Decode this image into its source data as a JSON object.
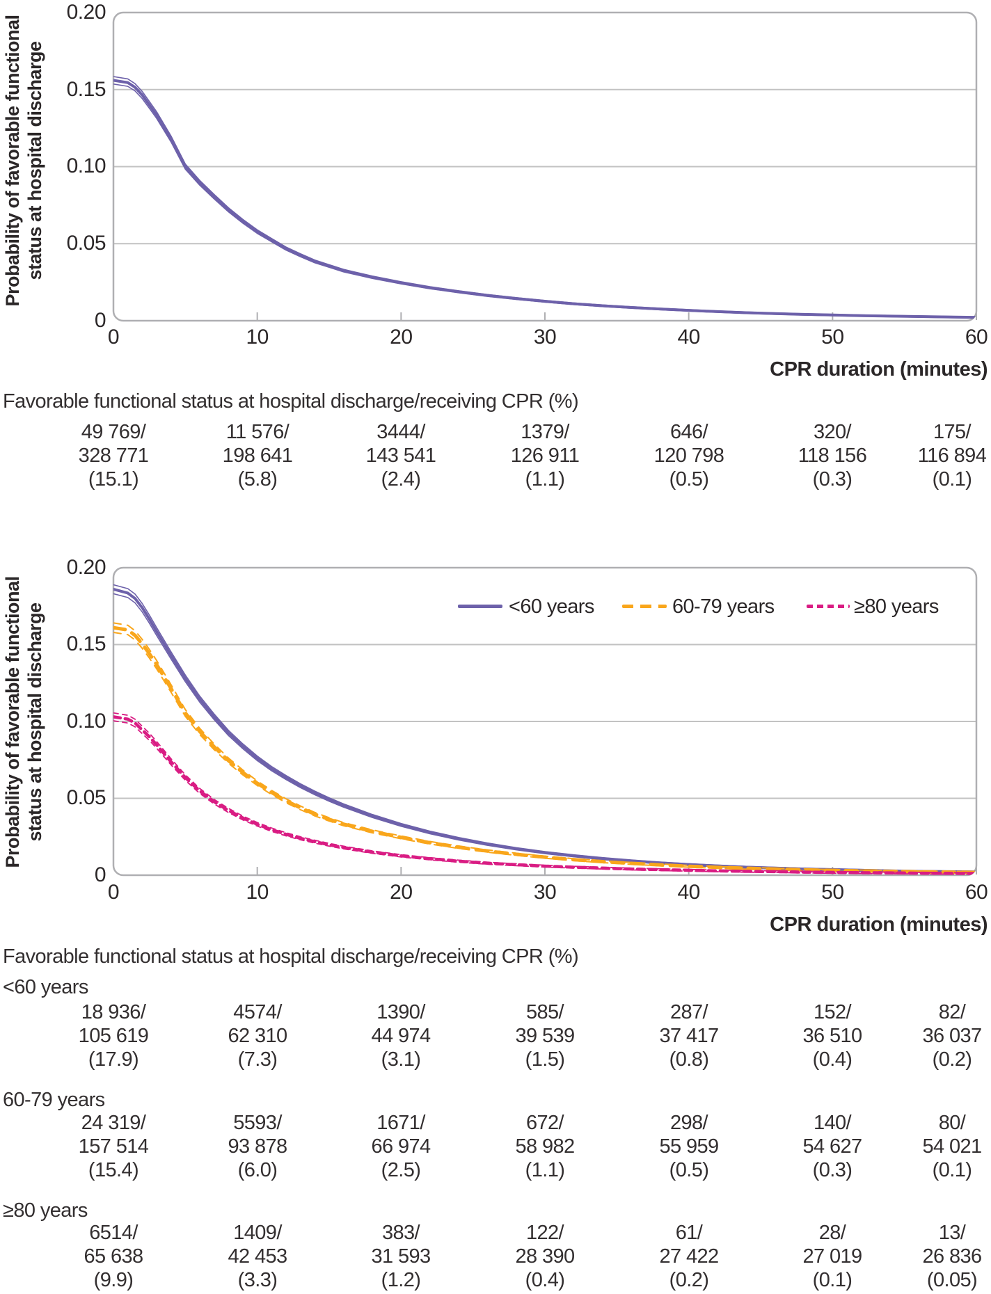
{
  "figure": {
    "background": "#ffffff",
    "text_color": "#332f30",
    "grid_color": "#c2c2c2",
    "border_color": "#afafb2",
    "accent_purple": "#6d61aa",
    "accent_orange": "#f9a61b",
    "accent_magenta": "#d91c83"
  },
  "chart_data": [
    {
      "type": "line",
      "panel": "top",
      "xlabel": "CPR duration (minutes)",
      "ylabel": [
        "Probability of favorable functional",
        "status at hospital discharge"
      ],
      "xlim": [
        0,
        60
      ],
      "ylim": [
        0,
        0.2
      ],
      "x_ticks": [
        "0",
        "10",
        "20",
        "30",
        "40",
        "50",
        "60"
      ],
      "y_ticks": [
        "0.20",
        "0.15",
        "0.10",
        "0.05",
        "0"
      ],
      "grid": true,
      "legend": null,
      "series": [
        {
          "color": "#6d61aa",
          "style": "solid",
          "ci_frac": 0.013,
          "ci_abs": 0.0004,
          "points": [
            [
              0,
              0.156
            ],
            [
              1,
              0.1545
            ],
            [
              1.5,
              0.1515
            ],
            [
              2,
              0.1465
            ],
            [
              2.5,
              0.14
            ],
            [
              3,
              0.1335
            ],
            [
              4,
              0.118
            ],
            [
              5,
              0.1
            ],
            [
              6,
              0.0895
            ],
            [
              7,
              0.0805
            ],
            [
              8,
              0.072
            ],
            [
              9,
              0.0645
            ],
            [
              10,
              0.0578
            ],
            [
              11,
              0.0523
            ],
            [
              12,
              0.0468
            ],
            [
              13,
              0.0425
            ],
            [
              14,
              0.0385
            ],
            [
              15,
              0.0355
            ],
            [
              16,
              0.0325
            ],
            [
              18,
              0.0282
            ],
            [
              20,
              0.0246
            ],
            [
              22,
              0.0214
            ],
            [
              24,
              0.0188
            ],
            [
              26,
              0.0164
            ],
            [
              28,
              0.0144
            ],
            [
              30,
              0.0126
            ],
            [
              32,
              0.011
            ],
            [
              34,
              0.0097
            ],
            [
              36,
              0.0086
            ],
            [
              38,
              0.0076
            ],
            [
              40,
              0.0067
            ],
            [
              42,
              0.0059
            ],
            [
              44,
              0.0052
            ],
            [
              46,
              0.0046
            ],
            [
              48,
              0.0041
            ],
            [
              50,
              0.0037
            ],
            [
              52,
              0.0033
            ],
            [
              54,
              0.003
            ],
            [
              56,
              0.0027
            ],
            [
              58,
              0.0024
            ],
            [
              60,
              0.0022
            ]
          ]
        }
      ],
      "footer_caption": "Favorable functional status at hospital discharge/receiving CPR (%)",
      "footer_columns": [
        [
          "49 769/",
          "328 771",
          "(15.1)"
        ],
        [
          "11 576/",
          "198 641",
          "(5.8)"
        ],
        [
          "3444/",
          "143 541",
          "(2.4)"
        ],
        [
          "1379/",
          "126 911",
          "(1.1)"
        ],
        [
          "646/",
          "120 798",
          "(0.5)"
        ],
        [
          "320/",
          "118 156",
          "(0.3)"
        ],
        [
          "175/",
          "116 894",
          "(0.1)"
        ]
      ]
    },
    {
      "type": "line",
      "panel": "bottom",
      "xlabel": "CPR duration (minutes)",
      "ylabel": [
        "Probability of favorable functional",
        "status at hospital discharge"
      ],
      "xlim": [
        0,
        60
      ],
      "ylim": [
        0,
        0.2
      ],
      "x_ticks": [
        "0",
        "10",
        "20",
        "30",
        "40",
        "50",
        "60"
      ],
      "y_ticks": [
        "0.20",
        "0.15",
        "0.10",
        "0.05",
        "0"
      ],
      "grid": true,
      "legend": {
        "position": "top-right-inside"
      },
      "series": [
        {
          "name": "<60 years",
          "color": "#6d61aa",
          "style": "solid",
          "ci_frac": 0.013,
          "ci_abs": 0.0005,
          "points": [
            [
              0,
              0.186
            ],
            [
              1,
              0.1835
            ],
            [
              1.5,
              0.18
            ],
            [
              2,
              0.174
            ],
            [
              2.5,
              0.1665
            ],
            [
              3,
              0.1585
            ],
            [
              4,
              0.143
            ],
            [
              5,
              0.128
            ],
            [
              6,
              0.1145
            ],
            [
              7,
              0.103
            ],
            [
              8,
              0.0925
            ],
            [
              9,
              0.0838
            ],
            [
              10,
              0.076
            ],
            [
              11,
              0.0693
            ],
            [
              12,
              0.0635
            ],
            [
              13,
              0.0582
            ],
            [
              14,
              0.0535
            ],
            [
              15,
              0.0492
            ],
            [
              16,
              0.0453
            ],
            [
              18,
              0.0385
            ],
            [
              20,
              0.0327
            ],
            [
              22,
              0.0278
            ],
            [
              24,
              0.0237
            ],
            [
              26,
              0.0202
            ],
            [
              28,
              0.0172
            ],
            [
              30,
              0.0147
            ],
            [
              32,
              0.0126
            ],
            [
              34,
              0.0108
            ],
            [
              36,
              0.0093
            ],
            [
              38,
              0.008
            ],
            [
              40,
              0.0069
            ],
            [
              42,
              0.006
            ],
            [
              44,
              0.0052
            ],
            [
              46,
              0.0046
            ],
            [
              48,
              0.004
            ],
            [
              50,
              0.0036
            ],
            [
              52,
              0.0032
            ],
            [
              54,
              0.0028
            ],
            [
              56,
              0.0025
            ],
            [
              58,
              0.0023
            ],
            [
              60,
              0.0021
            ]
          ]
        },
        {
          "name": "60-79 years",
          "color": "#f9a61b",
          "style": "dashed-long",
          "ci_frac": 0.016,
          "ci_abs": 0.0005,
          "points": [
            [
              0,
              0.161
            ],
            [
              1,
              0.1595
            ],
            [
              1.5,
              0.156
            ],
            [
              2,
              0.1505
            ],
            [
              2.5,
              0.144
            ],
            [
              3,
              0.137
            ],
            [
              4,
              0.1215
            ],
            [
              5,
              0.1055
            ],
            [
              6,
              0.0935
            ],
            [
              7,
              0.0835
            ],
            [
              8,
              0.0745
            ],
            [
              9,
              0.0668
            ],
            [
              10,
              0.0598
            ],
            [
              11,
              0.0538
            ],
            [
              12,
              0.0484
            ],
            [
              13,
              0.0438
            ],
            [
              14,
              0.0397
            ],
            [
              15,
              0.0363
            ],
            [
              16,
              0.0332
            ],
            [
              18,
              0.0285
            ],
            [
              20,
              0.0246
            ],
            [
              22,
              0.0211
            ],
            [
              24,
              0.0182
            ],
            [
              26,
              0.0157
            ],
            [
              28,
              0.0136
            ],
            [
              30,
              0.0117
            ],
            [
              32,
              0.0101
            ],
            [
              34,
              0.0088
            ],
            [
              36,
              0.0077
            ],
            [
              38,
              0.0067
            ],
            [
              40,
              0.0058
            ],
            [
              42,
              0.0051
            ],
            [
              44,
              0.0045
            ],
            [
              46,
              0.004
            ],
            [
              48,
              0.0035
            ],
            [
              50,
              0.0031
            ],
            [
              52,
              0.0028
            ],
            [
              54,
              0.0025
            ],
            [
              56,
              0.0022
            ],
            [
              58,
              0.002
            ],
            [
              60,
              0.0018
            ]
          ]
        },
        {
          "name": "≥80 years",
          "color": "#d91c83",
          "style": "dashed-short",
          "ci_frac": 0.02,
          "ci_abs": 0.0005,
          "points": [
            [
              0,
              0.103
            ],
            [
              1,
              0.1015
            ],
            [
              1.5,
              0.099
            ],
            [
              2,
              0.0945
            ],
            [
              2.5,
              0.09
            ],
            [
              3,
              0.0848
            ],
            [
              4,
              0.0738
            ],
            [
              5,
              0.0635
            ],
            [
              6,
              0.0548
            ],
            [
              7,
              0.0478
            ],
            [
              8,
              0.0421
            ],
            [
              9,
              0.0372
            ],
            [
              10,
              0.0331
            ],
            [
              11,
              0.0296
            ],
            [
              12,
              0.0266
            ],
            [
              13,
              0.024
            ],
            [
              14,
              0.0218
            ],
            [
              15,
              0.0198
            ],
            [
              16,
              0.018
            ],
            [
              18,
              0.015
            ],
            [
              20,
              0.0126
            ],
            [
              22,
              0.0107
            ],
            [
              24,
              0.0091
            ],
            [
              26,
              0.0078
            ],
            [
              28,
              0.0068
            ],
            [
              30,
              0.0059
            ],
            [
              32,
              0.0052
            ],
            [
              34,
              0.0046
            ],
            [
              36,
              0.004
            ],
            [
              38,
              0.0036
            ],
            [
              40,
              0.0032
            ],
            [
              42,
              0.0028
            ],
            [
              44,
              0.0025
            ],
            [
              46,
              0.0023
            ],
            [
              48,
              0.002
            ],
            [
              50,
              0.0018
            ],
            [
              52,
              0.0016
            ],
            [
              54,
              0.0015
            ],
            [
              56,
              0.0013
            ],
            [
              58,
              0.0012
            ],
            [
              60,
              0.0011
            ]
          ]
        }
      ],
      "footer_caption": "Favorable functional status at hospital discharge/receiving CPR (%)",
      "footer_groups": [
        {
          "label": "<60 years",
          "columns": [
            [
              "18 936/",
              "105 619",
              "(17.9)"
            ],
            [
              "4574/",
              "62 310",
              "(7.3)"
            ],
            [
              "1390/",
              "44 974",
              "(3.1)"
            ],
            [
              "585/",
              "39 539",
              "(1.5)"
            ],
            [
              "287/",
              "37 417",
              "(0.8)"
            ],
            [
              "152/",
              "36 510",
              "(0.4)"
            ],
            [
              "82/",
              "36 037",
              "(0.2)"
            ]
          ]
        },
        {
          "label": "60-79 years",
          "columns": [
            [
              "24 319/",
              "157 514",
              "(15.4)"
            ],
            [
              "5593/",
              "93 878",
              "(6.0)"
            ],
            [
              "1671/",
              "66 974",
              "(2.5)"
            ],
            [
              "672/",
              "58 982",
              "(1.1)"
            ],
            [
              "298/",
              "55 959",
              "(0.5)"
            ],
            [
              "140/",
              "54 627",
              "(0.3)"
            ],
            [
              "80/",
              "54 021",
              "(0.1)"
            ]
          ]
        },
        {
          "label": "≥80 years",
          "columns": [
            [
              "6514/",
              "65 638",
              "(9.9)"
            ],
            [
              "1409/",
              "42 453",
              "(3.3)"
            ],
            [
              "383/",
              "31 593",
              "(1.2)"
            ],
            [
              "122/",
              "28 390",
              "(0.4)"
            ],
            [
              "61/",
              "27 422",
              "(0.2)"
            ],
            [
              "28/",
              "27 019",
              "(0.1)"
            ],
            [
              "13/",
              "26 836",
              "(0.05)"
            ]
          ]
        }
      ]
    }
  ]
}
